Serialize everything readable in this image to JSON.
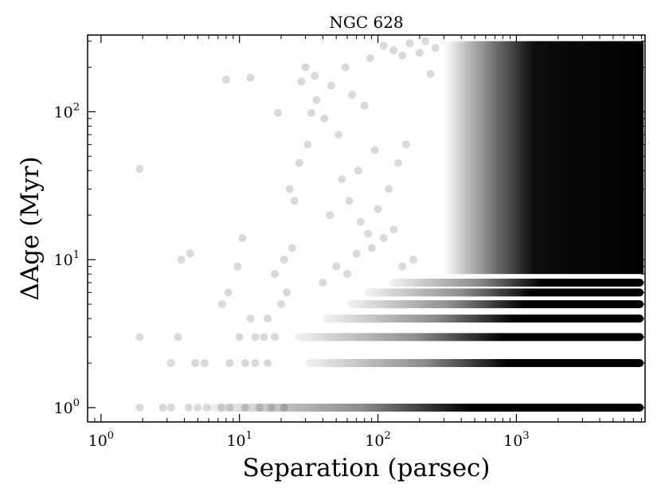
{
  "chart_data": {
    "type": "scatter",
    "title": "NGC 628",
    "xlabel": "Separation (parsec)",
    "ylabel": "ΔAge (Myr)",
    "x_scale": "log",
    "y_scale": "log",
    "xlim": [
      0.8,
      8500
    ],
    "ylim": [
      0.8,
      330
    ],
    "x_ticks": [
      {
        "value": 1,
        "base": "10",
        "exp": "0"
      },
      {
        "value": 10,
        "base": "10",
        "exp": "1"
      },
      {
        "value": 100,
        "base": "10",
        "exp": "2"
      },
      {
        "value": 1000,
        "base": "10",
        "exp": "3"
      }
    ],
    "y_ticks": [
      {
        "value": 1,
        "base": "10",
        "exp": "0"
      },
      {
        "value": 10,
        "base": "10",
        "exp": "1"
      },
      {
        "value": 100,
        "base": "10",
        "exp": "2"
      }
    ],
    "grid": false,
    "marker_color": "#000000",
    "marker_alpha": 0.15,
    "series": [
      {
        "points": [
          [
            1.9,
            1
          ],
          [
            2.8,
            1
          ],
          [
            3.2,
            1
          ],
          [
            4.3,
            1
          ],
          [
            5.0,
            1
          ],
          [
            5.8,
            1
          ],
          [
            7.4,
            1
          ],
          [
            8.5,
            1
          ],
          [
            11,
            1
          ],
          [
            14,
            1
          ],
          [
            17,
            1
          ],
          [
            21,
            1
          ],
          [
            1.9,
            3
          ],
          [
            3.6,
            3
          ],
          [
            10,
            3
          ],
          [
            13,
            3
          ],
          [
            15,
            3
          ],
          [
            18,
            3
          ],
          [
            3.2,
            2
          ],
          [
            4.8,
            2
          ],
          [
            5.6,
            2
          ],
          [
            8.5,
            2
          ],
          [
            11,
            2
          ],
          [
            13,
            2
          ],
          [
            16,
            2
          ],
          [
            1.9,
            41
          ],
          [
            3.8,
            10
          ],
          [
            4.4,
            11
          ],
          [
            7.5,
            5
          ],
          [
            8.3,
            6
          ],
          [
            9.7,
            9
          ],
          [
            10.5,
            14
          ],
          [
            12,
            170
          ],
          [
            8,
            165
          ],
          [
            12,
            4
          ],
          [
            16,
            4
          ],
          [
            20,
            5
          ],
          [
            22,
            6
          ],
          [
            25,
            25
          ],
          [
            28,
            160
          ],
          [
            30,
            200
          ],
          [
            33,
            98
          ],
          [
            35,
            175
          ],
          [
            18,
            8
          ],
          [
            21,
            10
          ],
          [
            24,
            12
          ],
          [
            19,
            98
          ],
          [
            23,
            30
          ],
          [
            27,
            45
          ],
          [
            31,
            60
          ],
          [
            36,
            120
          ],
          [
            41,
            90
          ],
          [
            46,
            150
          ],
          [
            52,
            70
          ],
          [
            58,
            200
          ],
          [
            65,
            130
          ],
          [
            72,
            40
          ],
          [
            80,
            110
          ],
          [
            88,
            230
          ],
          [
            95,
            55
          ],
          [
            110,
            280
          ],
          [
            130,
            260
          ],
          [
            150,
            240
          ],
          [
            170,
            290
          ],
          [
            200,
            250
          ],
          [
            220,
            300
          ],
          [
            240,
            180
          ],
          [
            260,
            270
          ],
          [
            45,
            20
          ],
          [
            55,
            35
          ],
          [
            62,
            25
          ],
          [
            75,
            18
          ],
          [
            85,
            15
          ],
          [
            100,
            22
          ],
          [
            120,
            30
          ],
          [
            140,
            45
          ],
          [
            160,
            60
          ],
          [
            40,
            7
          ],
          [
            50,
            9
          ],
          [
            60,
            8
          ],
          [
            70,
            11
          ],
          [
            90,
            12
          ],
          [
            110,
            14
          ],
          [
            130,
            16
          ],
          [
            150,
            9
          ],
          [
            180,
            10
          ]
        ]
      }
    ],
    "bands": [
      {
        "y": 1,
        "x_from": 6,
        "x_to": 8300
      },
      {
        "y": 2,
        "x_from": 30,
        "x_to": 8300
      },
      {
        "y": 3,
        "x_from": 25,
        "x_to": 8300
      },
      {
        "y": 4,
        "x_from": 40,
        "x_to": 8300
      },
      {
        "y": 5,
        "x_from": 60,
        "x_to": 8300
      },
      {
        "y": 6,
        "x_from": 80,
        "x_to": 8300
      },
      {
        "y": 7,
        "x_from": 120,
        "x_to": 8300
      }
    ],
    "dense_region": {
      "x_from": 300,
      "x_to": 8300,
      "y_from": 8,
      "y_to": 300
    }
  }
}
